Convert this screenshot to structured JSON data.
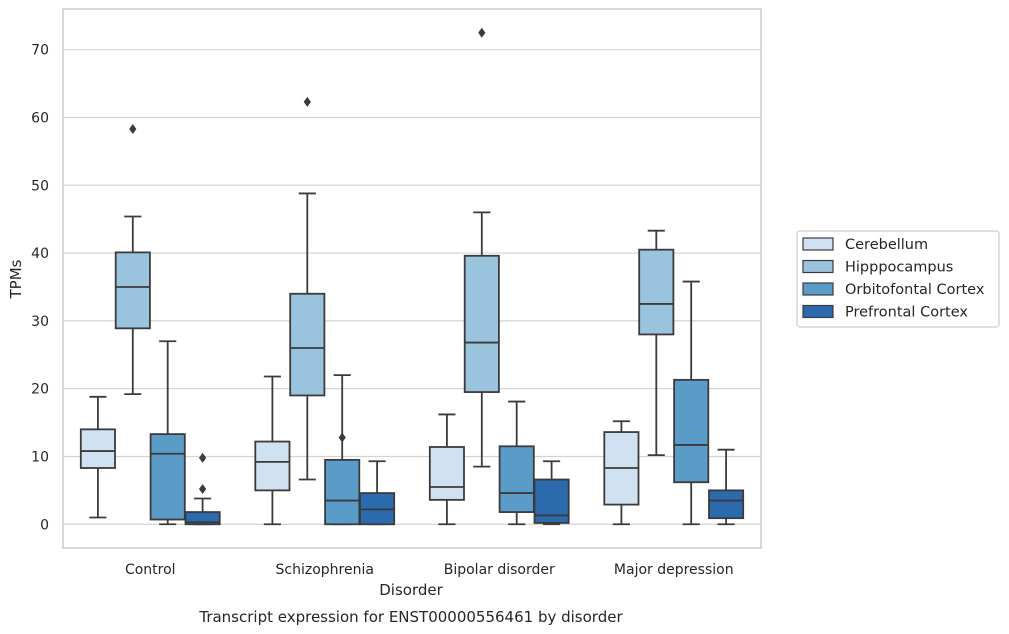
{
  "chart_data": {
    "type": "box",
    "title": "Transcript expression for ENST00000556461 by disorder",
    "xlabel": "Disorder",
    "ylabel": "TPMs",
    "ylim": [
      -3.5,
      76
    ],
    "yticks": [
      0,
      10,
      20,
      30,
      40,
      50,
      60,
      70
    ],
    "grid": true,
    "legend_position": "right",
    "categories": [
      "Control",
      "Schizophrenia",
      "Bipolar disorder",
      "Major depression"
    ],
    "series": [
      {
        "name": "Cerebellum",
        "color": "#d0e1f2",
        "boxes": [
          {
            "whisker_low": 1.0,
            "q1": 8.3,
            "median": 10.8,
            "q3": 14.0,
            "whisker_high": 18.8,
            "outliers": []
          },
          {
            "whisker_low": 0.0,
            "q1": 5.0,
            "median": 9.2,
            "q3": 12.2,
            "whisker_high": 21.8,
            "outliers": []
          },
          {
            "whisker_low": 0.0,
            "q1": 3.6,
            "median": 5.5,
            "q3": 11.4,
            "whisker_high": 16.2,
            "outliers": []
          },
          {
            "whisker_low": 0.0,
            "q1": 2.9,
            "median": 8.3,
            "q3": 13.6,
            "whisker_high": 15.2,
            "outliers": []
          }
        ]
      },
      {
        "name": "Hipppocampus",
        "color": "#9ac3dd",
        "boxes": [
          {
            "whisker_low": 19.2,
            "q1": 28.9,
            "median": 35.0,
            "q3": 40.1,
            "whisker_high": 45.4,
            "outliers": [
              58.3
            ]
          },
          {
            "whisker_low": 6.6,
            "q1": 19.0,
            "median": 26.0,
            "q3": 34.0,
            "whisker_high": 48.8,
            "outliers": [
              62.3
            ]
          },
          {
            "whisker_low": 8.5,
            "q1": 19.5,
            "median": 26.8,
            "q3": 39.6,
            "whisker_high": 46.0,
            "outliers": [
              72.5
            ]
          },
          {
            "whisker_low": 10.2,
            "q1": 28.0,
            "median": 32.5,
            "q3": 40.5,
            "whisker_high": 43.3,
            "outliers": []
          }
        ]
      },
      {
        "name": "Orbitofontal Cortex",
        "color": "#5b9bc8",
        "boxes": [
          {
            "whisker_low": 0.0,
            "q1": 0.7,
            "median": 10.4,
            "q3": 13.3,
            "whisker_high": 27.0,
            "outliers": []
          },
          {
            "whisker_low": 0.0,
            "q1": 0.0,
            "median": 3.5,
            "q3": 9.5,
            "whisker_high": 22.0,
            "outliers": [
              12.8
            ]
          },
          {
            "whisker_low": 0.0,
            "q1": 1.8,
            "median": 4.6,
            "q3": 11.5,
            "whisker_high": 18.1,
            "outliers": []
          },
          {
            "whisker_low": 0.0,
            "q1": 6.2,
            "median": 11.7,
            "q3": 21.3,
            "whisker_high": 35.8,
            "outliers": []
          }
        ]
      },
      {
        "name": "Prefrontal Cortex",
        "color": "#2a6aad",
        "boxes": [
          {
            "whisker_low": 0.0,
            "q1": 0.0,
            "median": 0.3,
            "q3": 1.8,
            "whisker_high": 3.8,
            "outliers": [
              5.2,
              9.8
            ]
          },
          {
            "whisker_low": 0.0,
            "q1": 0.0,
            "median": 2.2,
            "q3": 4.6,
            "whisker_high": 9.3,
            "outliers": []
          },
          {
            "whisker_low": 0.0,
            "q1": 0.2,
            "median": 1.3,
            "q3": 6.6,
            "whisker_high": 9.3,
            "outliers": []
          },
          {
            "whisker_low": 0.0,
            "q1": 0.9,
            "median": 3.5,
            "q3": 5.0,
            "whisker_high": 11.0,
            "outliers": []
          }
        ]
      }
    ]
  }
}
